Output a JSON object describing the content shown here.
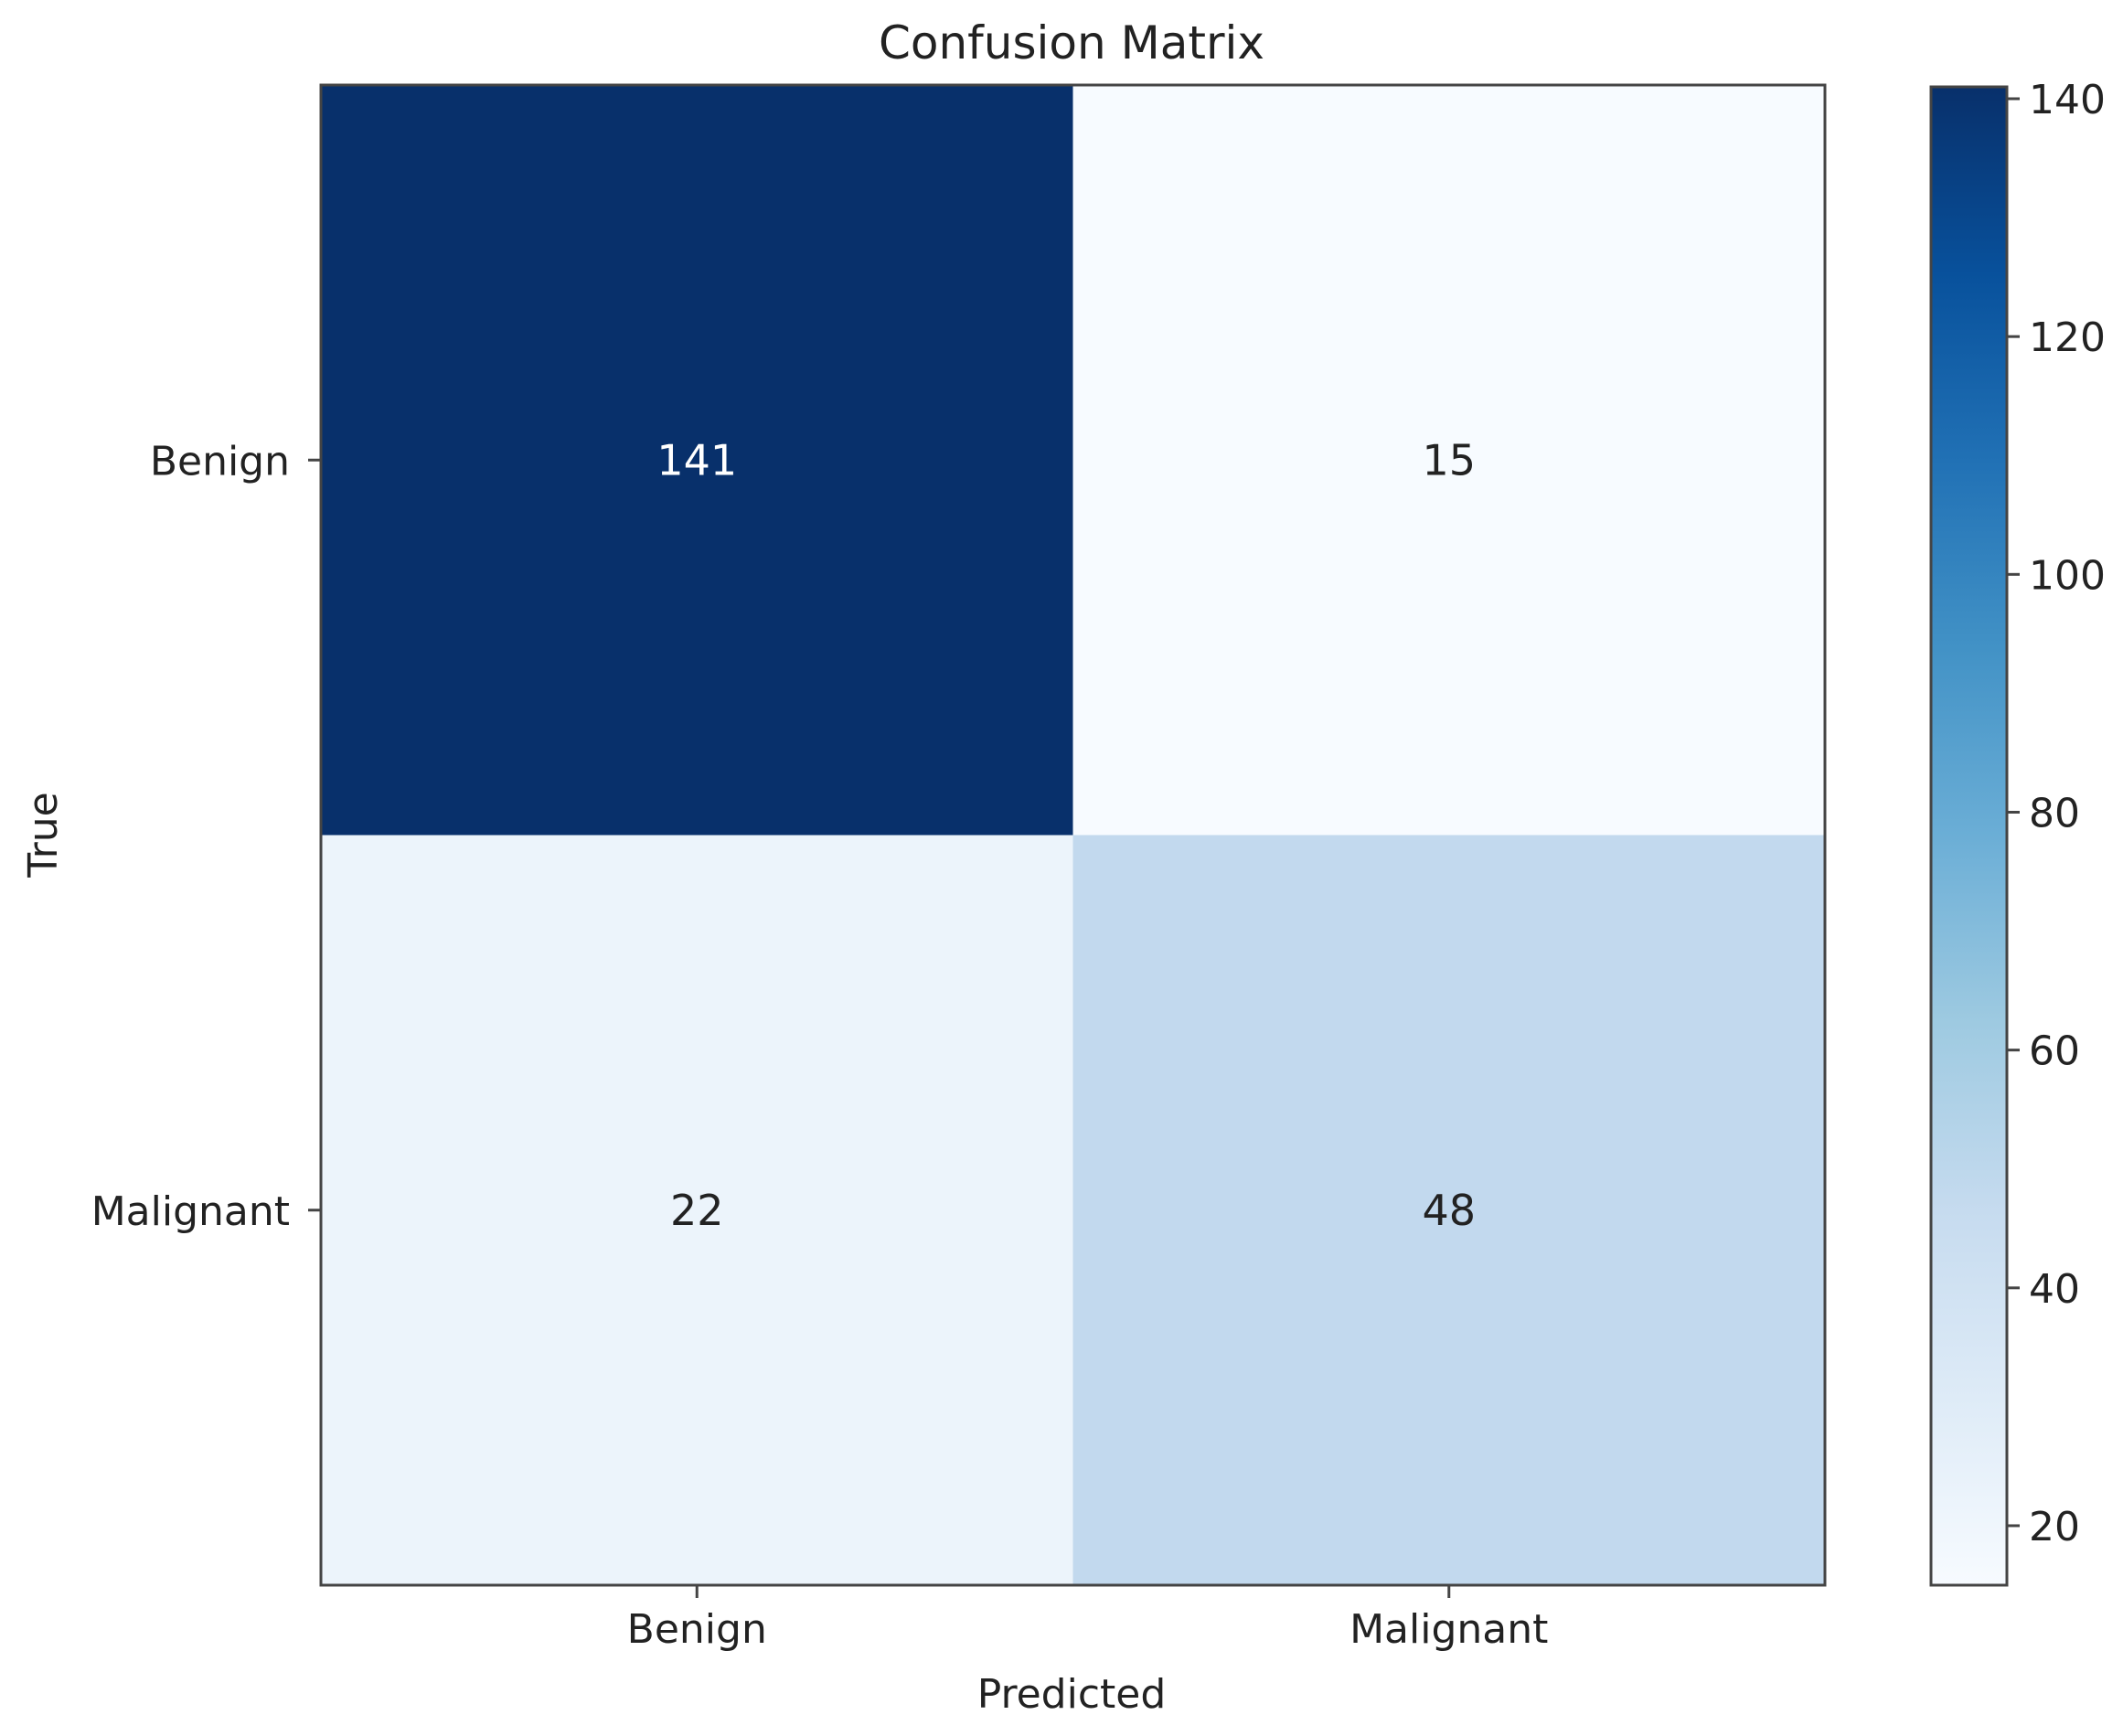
{
  "chart_data": {
    "type": "heatmap",
    "title": "Confusion Matrix",
    "xlabel": "Predicted",
    "ylabel": "True",
    "x_categories": [
      "Benign",
      "Malignant"
    ],
    "y_categories": [
      "Benign",
      "Malignant"
    ],
    "values": [
      [
        141,
        15
      ],
      [
        22,
        48
      ]
    ],
    "colormap": "Blues",
    "vmin": 15,
    "vmax": 141,
    "colorbar": {
      "ticks": [
        20,
        40,
        60,
        80,
        100,
        120,
        140
      ],
      "tick_labels": [
        "20",
        "40",
        "60",
        "80",
        "100",
        "120",
        "140"
      ]
    },
    "grid": false
  }
}
